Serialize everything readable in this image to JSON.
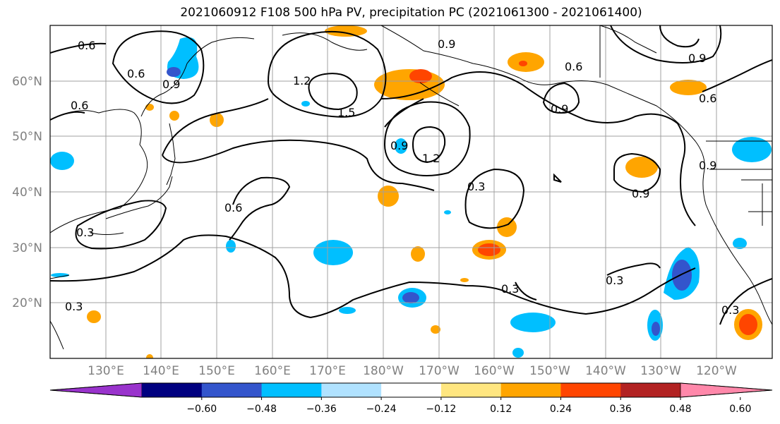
{
  "title": "2021060912 F108 500 hPa PV, precipitation PC (2021061300 - 2021061400)",
  "lat_labels": [
    "60°N",
    "50°N",
    "40°N",
    "30°N",
    "20°N"
  ],
  "lon_labels": [
    "130°E",
    "140°E",
    "150°E",
    "160°E",
    "170°E",
    "180°W",
    "170°W",
    "160°W",
    "150°W",
    "140°W",
    "130°W",
    "120°W"
  ],
  "contour_labels": [
    "0.6",
    "0.6",
    "0.9",
    "1.2",
    "1.5",
    "0.9",
    "0.6",
    "0.9",
    "0.6",
    "0.9",
    "0.9",
    "1.2",
    "0.3",
    "0.9",
    "0.6",
    "0.3",
    "0.3",
    "0.3",
    "0.6",
    "0.3",
    "0.3",
    "0.9"
  ],
  "colorbar": {
    "colors": [
      "#9933cc",
      "#000080",
      "#3355cc",
      "#00bfff",
      "#b0e2ff",
      "#ffffff",
      "#ffe680",
      "#ffa500",
      "#ff4500",
      "#b22222",
      "#ff88aa"
    ],
    "ticks": [
      "−0.60",
      "−0.48",
      "−0.36",
      "−0.24",
      "−0.12",
      "0.12",
      "0.24",
      "0.36",
      "0.48",
      "0.60"
    ]
  },
  "colors": {
    "land": "#000000",
    "contour": "#000000",
    "grid": "#a0a0a0"
  }
}
